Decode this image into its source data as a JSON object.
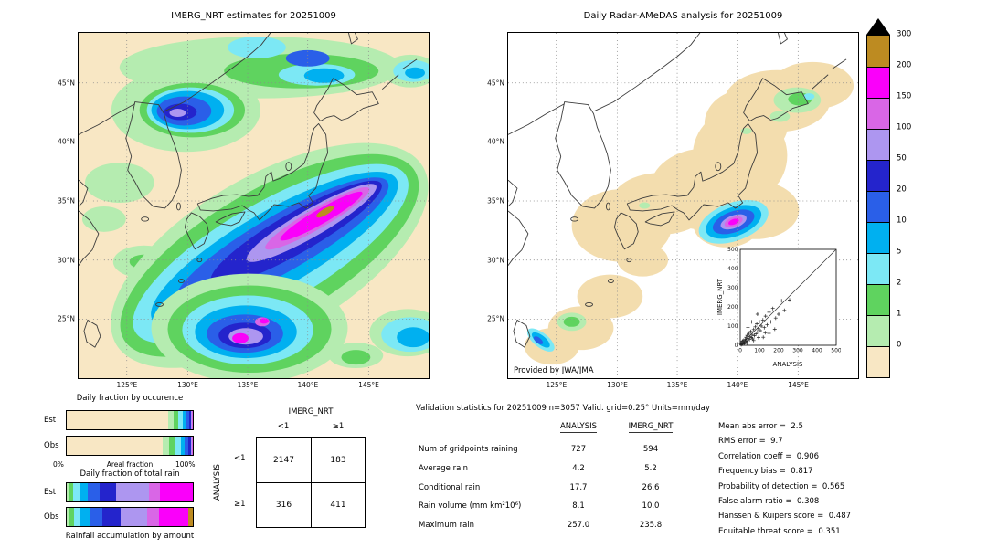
{
  "figure": {
    "left_title": "IMERG_NRT estimates for 20251009",
    "right_title": "Daily Radar-AMeDAS analysis for 20251009",
    "credit": "Provided by JWA/JMA",
    "lat_ticks": [
      "45°N",
      "40°N",
      "35°N",
      "30°N",
      "25°N"
    ],
    "lon_ticks": [
      "125°E",
      "130°E",
      "135°E",
      "140°E",
      "145°E"
    ]
  },
  "colorbar": {
    "units": "mm/day",
    "levels": [
      "300",
      "200",
      "150",
      "100",
      "50",
      "20",
      "10",
      "5",
      "2",
      "1",
      "0"
    ],
    "colors_top_to_bottom": [
      "#bd8b21",
      "#fa00fa",
      "#d966e6",
      "#ad96f0",
      "#2424cc",
      "#2a5fe8",
      "#00b0f0",
      "#7ce8f5",
      "#5fd35f",
      "#b5ecb0",
      "#f8e7c4"
    ],
    "over_color": "#000000"
  },
  "chart_data": [
    {
      "type": "heatmap",
      "subtype": "gridded-precipitation-map",
      "title": "IMERG_NRT estimates for 20251009",
      "units": "mm/day",
      "x_ticks": [
        "125°E",
        "130°E",
        "135°E",
        "140°E",
        "145°E"
      ],
      "y_ticks": [
        "45°N",
        "40°N",
        "35°N",
        "30°N",
        "25°N"
      ],
      "color_levels": [
        0,
        1,
        2,
        5,
        10,
        20,
        50,
        100,
        150,
        200,
        300
      ],
      "features": [
        "SW-NE oriented heavy rain band south of Honshu, magenta core 150-300 mm/day near 139-144E 33-35N with small >200 gold spot",
        "second heavy cluster near 134-137E 22-26N with magenta cores",
        "moderate rain 10-100 mm/day over NW Sea of Japan near 130E 43N",
        "light-moderate rain band along 45-47N",
        "scattered light rain patches west of Kyushu and in SE corner"
      ]
    },
    {
      "type": "heatmap",
      "subtype": "gridded-precipitation-map",
      "title": "Daily Radar-AMeDAS analysis for 20251009",
      "units": "mm/day",
      "x_ticks": [
        "125°E",
        "130°E",
        "135°E",
        "140°E",
        "145°E"
      ],
      "y_ticks": [
        "45°N",
        "40°N",
        "35°N",
        "30°N",
        "25°N"
      ],
      "color_levels": [
        0,
        1,
        2,
        5,
        10,
        20,
        50,
        100,
        150,
        200,
        300
      ],
      "coverage": "radar coverage (tan) only along the Japanese archipelago",
      "features": [
        "compact heavy rain cell 100-300 mm/day near 139E 33N south of Tokyo",
        "light rain 1-5 mm/day over eastern Hokkaido",
        "small 5-50 mm/day cell near 123E 24N"
      ],
      "credit": "Provided by JWA/JMA"
    },
    {
      "type": "scatter",
      "xlabel": "ANALYSIS",
      "ylabel": "IMERG_NRT",
      "xlim": [
        0,
        500
      ],
      "ylim": [
        0,
        500
      ],
      "ticks": [
        "0",
        "100",
        "200",
        "300",
        "400",
        "500"
      ],
      "ref_line": "y=x",
      "marker": "+",
      "points": [
        [
          3,
          8
        ],
        [
          5,
          3
        ],
        [
          7,
          15
        ],
        [
          10,
          6
        ],
        [
          12,
          22
        ],
        [
          15,
          10
        ],
        [
          18,
          26
        ],
        [
          20,
          14
        ],
        [
          22,
          7
        ],
        [
          25,
          32
        ],
        [
          28,
          18
        ],
        [
          30,
          42
        ],
        [
          33,
          22
        ],
        [
          36,
          52
        ],
        [
          40,
          28
        ],
        [
          42,
          36
        ],
        [
          45,
          62
        ],
        [
          48,
          30
        ],
        [
          52,
          46
        ],
        [
          55,
          72
        ],
        [
          58,
          40
        ],
        [
          62,
          56
        ],
        [
          65,
          34
        ],
        [
          70,
          82
        ],
        [
          74,
          50
        ],
        [
          78,
          96
        ],
        [
          82,
          60
        ],
        [
          86,
          112
        ],
        [
          90,
          70
        ],
        [
          95,
          86
        ],
        [
          100,
          122
        ],
        [
          105,
          76
        ],
        [
          110,
          100
        ],
        [
          118,
          132
        ],
        [
          125,
          92
        ],
        [
          132,
          152
        ],
        [
          140,
          106
        ],
        [
          150,
          172
        ],
        [
          160,
          122
        ],
        [
          170,
          192
        ],
        [
          185,
          142
        ],
        [
          200,
          162
        ],
        [
          215,
          232
        ],
        [
          230,
          182
        ],
        [
          257,
          236
        ],
        [
          90,
          162
        ],
        [
          60,
          122
        ],
        [
          40,
          92
        ],
        [
          120,
          42
        ],
        [
          150,
          62
        ],
        [
          180,
          84
        ],
        [
          35,
          12
        ],
        [
          70,
          25
        ],
        [
          95,
          40
        ],
        [
          130,
          65
        ]
      ]
    },
    {
      "type": "bar",
      "orientation": "horizontal-stacked",
      "title": "Daily fraction by occurence",
      "categories": [
        "Est",
        "Obs"
      ],
      "axis": {
        "min_label": "0%",
        "label": "Areal fraction",
        "max_label": "100%"
      },
      "series": {
        "Est": [
          {
            "color": "#f8e7c4",
            "pct": 80.5
          },
          {
            "color": "#b5ecb0",
            "pct": 4.2
          },
          {
            "color": "#5fd35f",
            "pct": 4.0
          },
          {
            "color": "#7ce8f5",
            "pct": 3.4
          },
          {
            "color": "#00b0f0",
            "pct": 2.9
          },
          {
            "color": "#2a5fe8",
            "pct": 2.4
          },
          {
            "color": "#2424cc",
            "pct": 1.5
          },
          {
            "color": "#ad96f0",
            "pct": 0.6
          },
          {
            "color": "#d966e6",
            "pct": 0.3
          },
          {
            "color": "#fa00fa",
            "pct": 0.2
          }
        ],
        "Obs": [
          {
            "color": "#f8e7c4",
            "pct": 76.2
          },
          {
            "color": "#b5ecb0",
            "pct": 5.1
          },
          {
            "color": "#5fd35f",
            "pct": 4.9
          },
          {
            "color": "#7ce8f5",
            "pct": 4.1
          },
          {
            "color": "#00b0f0",
            "pct": 3.4
          },
          {
            "color": "#2a5fe8",
            "pct": 2.9
          },
          {
            "color": "#2424cc",
            "pct": 2.0
          },
          {
            "color": "#ad96f0",
            "pct": 0.9
          },
          {
            "color": "#d966e6",
            "pct": 0.4
          },
          {
            "color": "#fa00fa",
            "pct": 0.1
          }
        ]
      }
    },
    {
      "type": "bar",
      "orientation": "horizontal-stacked",
      "title": "Daily fraction of total rain",
      "categories": [
        "Est",
        "Obs"
      ],
      "axis": {
        "label": "Rainfall accumulation by amount"
      },
      "series": {
        "Est": [
          {
            "color": "#b5ecb0",
            "pct": 1.5
          },
          {
            "color": "#5fd35f",
            "pct": 3.5
          },
          {
            "color": "#7ce8f5",
            "pct": 5.0
          },
          {
            "color": "#00b0f0",
            "pct": 7.0
          },
          {
            "color": "#2a5fe8",
            "pct": 9.0
          },
          {
            "color": "#2424cc",
            "pct": 13.0
          },
          {
            "color": "#ad96f0",
            "pct": 26.0
          },
          {
            "color": "#d966e6",
            "pct": 9.0
          },
          {
            "color": "#fa00fa",
            "pct": 26.0
          }
        ],
        "Obs": [
          {
            "color": "#b5ecb0",
            "pct": 1.5
          },
          {
            "color": "#5fd35f",
            "pct": 4.0
          },
          {
            "color": "#7ce8f5",
            "pct": 5.5
          },
          {
            "color": "#00b0f0",
            "pct": 7.5
          },
          {
            "color": "#2a5fe8",
            "pct": 10.0
          },
          {
            "color": "#2424cc",
            "pct": 14.0
          },
          {
            "color": "#ad96f0",
            "pct": 21.0
          },
          {
            "color": "#d966e6",
            "pct": 10.0
          },
          {
            "color": "#fa00fa",
            "pct": 23.0
          },
          {
            "color": "#bd8b21",
            "pct": 3.5
          }
        ]
      }
    },
    {
      "type": "table",
      "name": "contingency-table",
      "col_header": "IMERG_NRT",
      "row_header": "ANALYSIS",
      "col_labels": [
        "<1",
        "≥1"
      ],
      "row_labels": [
        "<1",
        "≥1"
      ],
      "values": [
        [
          "2147",
          "183"
        ],
        [
          "316",
          "411"
        ]
      ]
    },
    {
      "type": "table",
      "name": "validation-statistics",
      "title": "Validation statistics for 20251009  n=3057 Valid. grid=0.25° Units=mm/day",
      "columns": [
        "ANALYSIS",
        "IMERG_NRT"
      ],
      "rows": [
        {
          "label": "Num of gridpoints raining",
          "analysis": "727",
          "imerg": "594"
        },
        {
          "label": "Average rain",
          "analysis": "4.2",
          "imerg": "5.2"
        },
        {
          "label": "Conditional rain",
          "analysis": "17.7",
          "imerg": "26.6"
        },
        {
          "label": "Rain volume (mm km²10⁶)",
          "analysis": "8.1",
          "imerg": "10.0"
        },
        {
          "label": "Maximum rain",
          "analysis": "257.0",
          "imerg": "235.8"
        }
      ],
      "scores": [
        {
          "label": "Mean abs error",
          "value": "2.5"
        },
        {
          "label": "RMS error",
          "value": "9.7"
        },
        {
          "label": "Correlation coeff",
          "value": "0.906"
        },
        {
          "label": "Frequency bias",
          "value": "0.817"
        },
        {
          "label": "Probability of detection",
          "value": "0.565"
        },
        {
          "label": "False alarm ratio",
          "value": "0.308"
        },
        {
          "label": "Hanssen & Kuipers score",
          "value": "0.487"
        },
        {
          "label": "Equitable threat score",
          "value": "0.351"
        }
      ]
    }
  ]
}
